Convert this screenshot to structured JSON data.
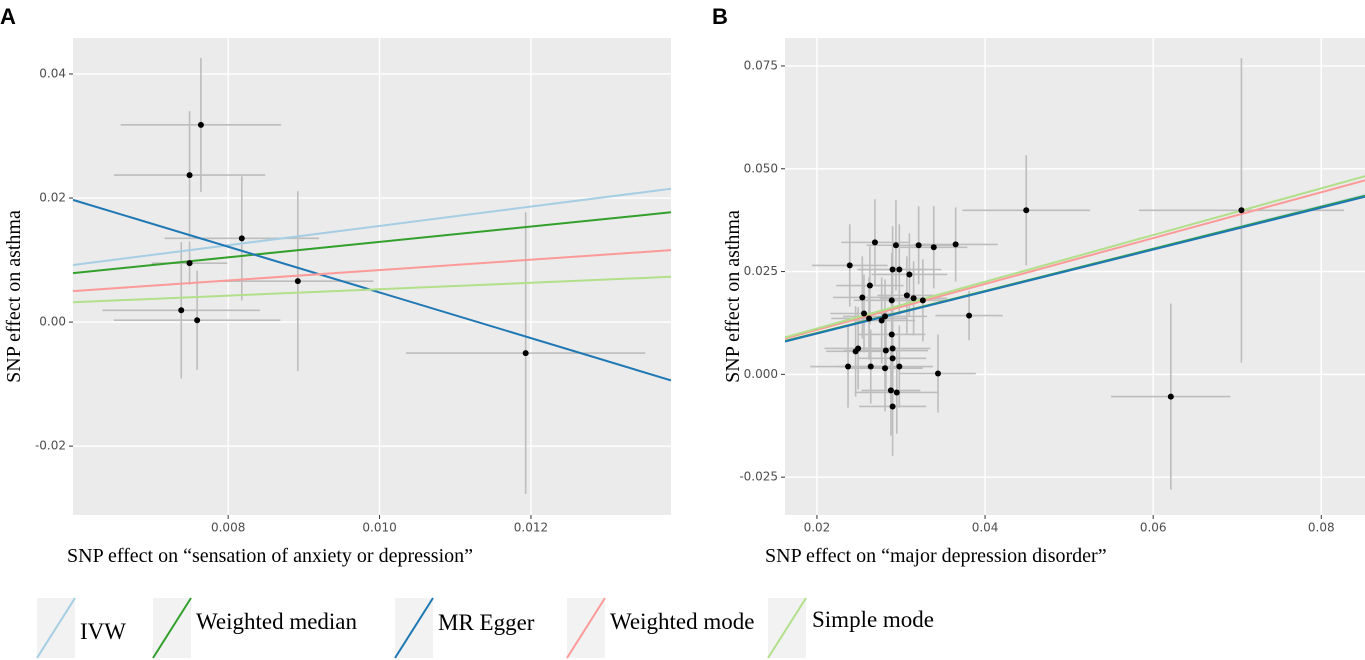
{
  "chart_data": [
    {
      "type": "scatter",
      "panel": "A",
      "xlabel": "SNP effect on  “sensation of anxiety or depression”",
      "ylabel": "SNP effect on asthma",
      "x": [
        0.00764,
        0.00749,
        0.00818,
        0.00749,
        0.00892,
        0.00738,
        0.00759,
        0.01193
      ],
      "values": [
        0.0318,
        0.0237,
        0.0135,
        0.0095,
        0.0066,
        0.0019,
        0.0003,
        -0.005
      ],
      "xerr": [
        0.00106,
        0.001,
        0.00102,
        0.0005,
        0.001,
        0.00104,
        0.0011,
        0.00158
      ],
      "yerr": [
        0.0108,
        0.0103,
        0.01,
        0.0035,
        0.0145,
        0.011,
        0.008,
        0.0227
      ],
      "xlim": [
        0.00595,
        0.01385
      ],
      "ylim": [
        -0.0311,
        0.0458
      ],
      "xticks": [
        0.008,
        {
          "value": 0.01,
          "label": "0.010"
        },
        0.012
      ],
      "yticks": [
        -0.02,
        {
          "value": 0,
          "label": "0.00"
        },
        0.02,
        0.04
      ],
      "series": [
        {
          "name": "IVW",
          "color": "#a6cee3",
          "x": [
            0.00595,
            0.01385
          ],
          "values": [
            0.0092,
            0.0215
          ]
        },
        {
          "name": "Weighted median",
          "color": "#33a02c",
          "x": [
            0.00595,
            0.01385
          ],
          "values": [
            0.0079,
            0.0177
          ]
        },
        {
          "name": "MR Egger",
          "color": "#1f78b4",
          "x": [
            0.00595,
            0.01385
          ],
          "values": [
            0.0197,
            -0.0094
          ]
        },
        {
          "name": "Weighted mode",
          "color": "#fb9a99",
          "x": [
            0.00595,
            0.01385
          ],
          "values": [
            0.005,
            0.0116
          ]
        },
        {
          "name": "Simple mode",
          "color": "#b2df8a",
          "x": [
            0.00595,
            0.01385
          ],
          "values": [
            0.0032,
            0.0073
          ]
        }
      ]
    },
    {
      "type": "scatter",
      "panel": "B",
      "xlabel": "SNP effect on “major depression disorder”",
      "ylabel": "SNP effect on asthma",
      "x": [
        0.0239,
        0.0269,
        0.0294,
        0.0321,
        0.0339,
        0.0365,
        0.0449,
        0.0705,
        0.0263,
        0.0254,
        0.029,
        0.0298,
        0.031,
        0.0307,
        0.0315,
        0.0326,
        0.0289,
        0.0256,
        0.0262,
        0.0277,
        0.0281,
        0.0381,
        0.0289,
        0.029,
        0.0249,
        0.0246,
        0.0282,
        0.029,
        0.0237,
        0.0264,
        0.0281,
        0.0298,
        0.0344,
        0.0288,
        0.0295,
        0.029,
        0.0621
      ],
      "values": [
        0.0265,
        0.0321,
        0.0314,
        0.0314,
        0.0309,
        0.0316,
        0.0399,
        0.0399,
        0.0216,
        0.0187,
        0.0255,
        0.0255,
        0.0243,
        0.0192,
        0.0185,
        0.018,
        0.018,
        0.0148,
        0.0136,
        0.0131,
        0.0141,
        0.0143,
        0.0097,
        0.0063,
        0.0063,
        0.0056,
        0.0058,
        0.0039,
        0.0019,
        0.0019,
        0.0015,
        0.0019,
        0.0002,
        -0.0039,
        -0.0044,
        -0.0078,
        -0.0054
      ],
      "xerr": [
        0.0045,
        0.004,
        0.0035,
        0.0045,
        0.004,
        0.005,
        0.0076,
        0.0122,
        0.004,
        0.0035,
        0.004,
        0.005,
        0.0045,
        0.0035,
        0.004,
        0.0035,
        0.0045,
        0.004,
        0.0045,
        0.004,
        0.005,
        0.004,
        0.004,
        0.0045,
        0.004,
        0.0035,
        0.005,
        0.004,
        0.0045,
        0.004,
        0.0045,
        0.004,
        0.0045,
        0.0035,
        0.005,
        0.004,
        0.0071
      ],
      "yerr": [
        0.01,
        0.0105,
        0.011,
        0.0095,
        0.01,
        0.009,
        0.0134,
        0.037,
        0.0095,
        0.01,
        0.0105,
        0.011,
        0.01,
        0.0095,
        0.009,
        0.01,
        0.0115,
        0.0095,
        0.01,
        0.0105,
        0.009,
        0.006,
        0.0105,
        0.0095,
        0.01,
        0.011,
        0.0095,
        0.0105,
        0.01,
        0.009,
        0.0105,
        0.01,
        0.0095,
        0.011,
        0.01,
        0.012,
        0.0226
      ],
      "xlim": [
        0.0162,
        0.0852
      ],
      "ylim": [
        -0.0342,
        0.0818
      ],
      "xticks": [
        0.02,
        0.04,
        0.06,
        0.08
      ],
      "yticks": [
        -0.025,
        {
          "value": 0,
          "label": "0.000"
        },
        0.025,
        {
          "value": 0.05,
          "label": "0.050"
        },
        0.075
      ],
      "series": [
        {
          "color": "#a6cee3",
          "x": [
            0.0162,
            0.0852
          ],
          "values": [
            0.008,
            0.0436
          ]
        },
        {
          "color": "#33a02c",
          "x": [
            0.0162,
            0.0852
          ],
          "values": [
            0.0081,
            0.0434
          ]
        },
        {
          "color": "#1f78b4",
          "x": [
            0.0162,
            0.0852
          ],
          "values": [
            0.008,
            0.0432
          ]
        },
        {
          "color": "#fb9a99",
          "x": [
            0.0162,
            0.0852
          ],
          "values": [
            0.0087,
            0.0472
          ]
        },
        {
          "color": "#b2df8a",
          "x": [
            0.0162,
            0.0852
          ],
          "values": [
            0.009,
            0.0482
          ]
        }
      ]
    }
  ]
}
